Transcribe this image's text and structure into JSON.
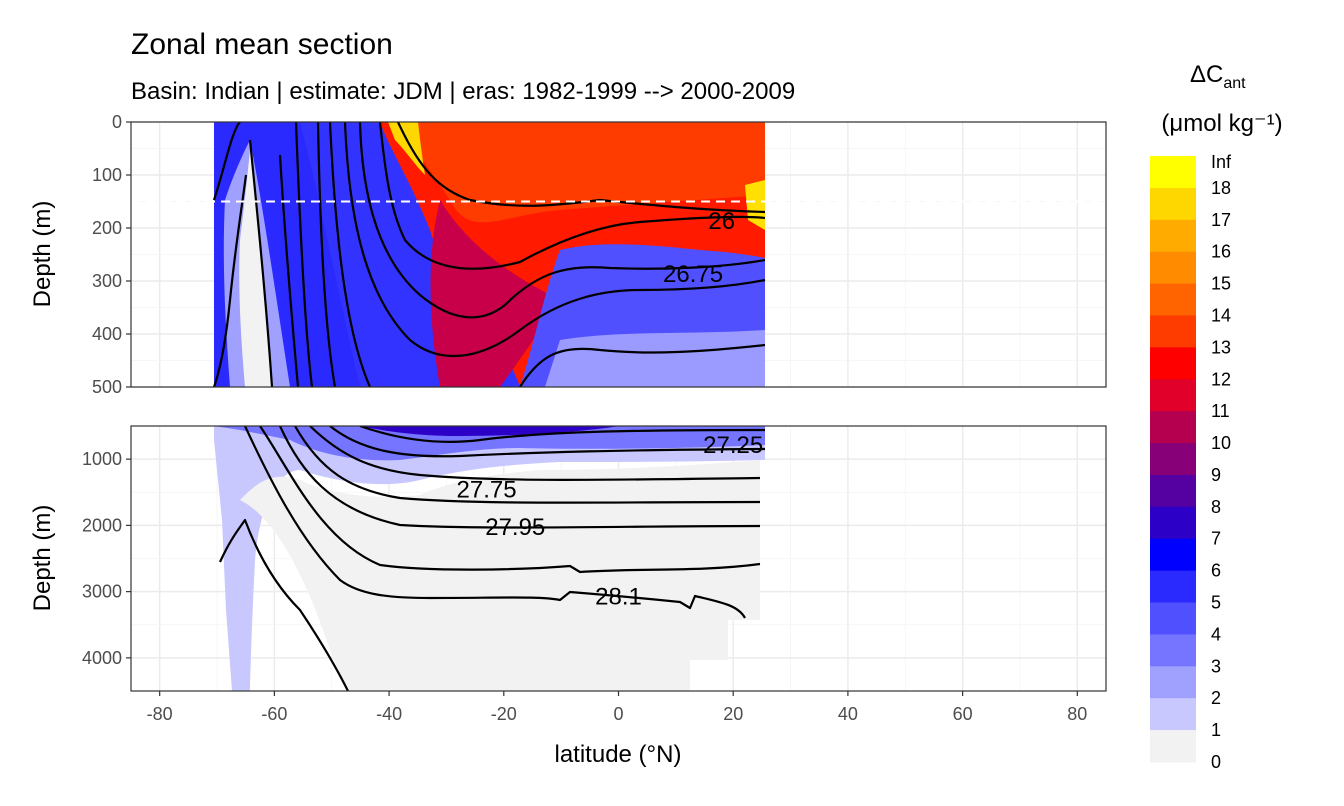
{
  "chart_data": {
    "type": "heatmap",
    "title": "Zonal mean section",
    "subtitle": "Basin: Indian | estimate: JDM  | eras: 1982-1999 --> 2000-2009",
    "xlabel": "latitude (°N)",
    "ylabel": "Depth (m)",
    "x_ticks": [
      -80,
      -60,
      -40,
      -20,
      0,
      20,
      40,
      60,
      80
    ],
    "x_tick_labels": [
      "-80",
      "-60",
      "-40",
      "-20",
      "0",
      "20",
      "40",
      "60",
      "80"
    ],
    "xlim": [
      -85,
      85
    ],
    "data_lat_range": [
      -70,
      25
    ],
    "reference_line_depth": 150,
    "panels": [
      {
        "name": "upper",
        "ylim": [
          0,
          500
        ],
        "y_ticks": [
          0,
          100,
          200,
          300,
          400,
          500
        ],
        "y_tick_labels": [
          "0",
          "100",
          "200",
          "300",
          "400",
          "500"
        ]
      },
      {
        "name": "lower",
        "ylim": [
          500,
          4500
        ],
        "y_ticks": [
          1000,
          2000,
          3000,
          4000
        ],
        "y_tick_labels": [
          "1000",
          "2000",
          "3000",
          "4000"
        ]
      }
    ],
    "isopycnal_labels": [
      {
        "text": "26",
        "lat": 18,
        "depth": 185
      },
      {
        "text": "26.75",
        "lat": 13,
        "depth": 285
      },
      {
        "text": "27.25",
        "lat": 20,
        "depth": 775
      },
      {
        "text": "27.75",
        "lat": -23,
        "depth": 1440
      },
      {
        "text": "27.95",
        "lat": -18,
        "depth": 2010
      },
      {
        "text": "28.1",
        "lat": 0,
        "depth": 3060
      }
    ],
    "legend": {
      "title_main": "ΔC",
      "title_sub": "ant",
      "unit": "(μmol kg⁻¹)",
      "bin_labels": [
        "Inf",
        "18",
        "17",
        "16",
        "15",
        "14",
        "13",
        "12",
        "11",
        "10",
        "9",
        "8",
        "7",
        "6",
        "5",
        "4",
        "3",
        "2",
        "1",
        "0"
      ],
      "colors": [
        "#ffff00",
        "#ffd700",
        "#ffab00",
        "#ff8c00",
        "#ff6400",
        "#ff3c00",
        "#ff0000",
        "#e0002a",
        "#b4004e",
        "#870078",
        "#5500a0",
        "#2d00c8",
        "#0000ff",
        "#2a2aff",
        "#5050ff",
        "#7575ff",
        "#a0a0ff",
        "#c8c8ff",
        "#f2f2f2"
      ]
    }
  }
}
